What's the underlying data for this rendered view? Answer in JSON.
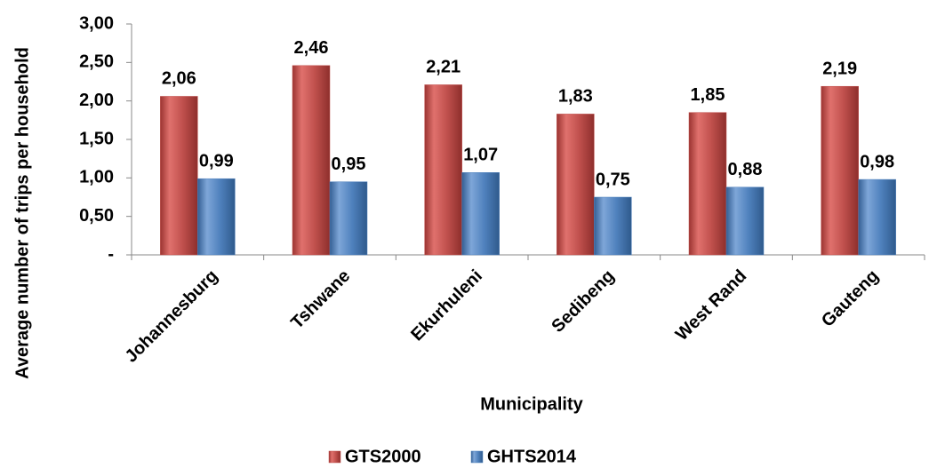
{
  "chart_data": {
    "type": "bar",
    "y_axis_label": "Average number of trips per household",
    "x_axis_label": "Municipality",
    "categories": [
      "Johannesburg",
      "Tshwane",
      "Ekurhuleni",
      "Sedibeng",
      "West Rand",
      "Gauteng"
    ],
    "series": [
      {
        "name": "GTS2000",
        "color": "#c0504d",
        "values": [
          2.06,
          2.46,
          2.21,
          1.83,
          1.85,
          2.19
        ],
        "value_labels": [
          "2,06",
          "2,46",
          "2,21",
          "1,83",
          "1,85",
          "2,19"
        ]
      },
      {
        "name": "GHTS2014",
        "color": "#4f81bd",
        "values": [
          0.99,
          0.95,
          1.07,
          0.75,
          0.88,
          0.98
        ],
        "value_labels": [
          "0,99",
          "0,95",
          "1,07",
          "0,75",
          "0,88",
          "0,98"
        ]
      }
    ],
    "ylim": [
      0,
      3
    ],
    "yticks": [
      {
        "value": 0,
        "label": "-"
      },
      {
        "value": 0.5,
        "label": "0,50"
      },
      {
        "value": 1,
        "label": "1,00"
      },
      {
        "value": 1.5,
        "label": "1,50"
      },
      {
        "value": 2,
        "label": "2,00"
      },
      {
        "value": 2.5,
        "label": "2,50"
      },
      {
        "value": 3,
        "label": "3,00"
      }
    ],
    "grid": false,
    "legend": "bottom"
  }
}
